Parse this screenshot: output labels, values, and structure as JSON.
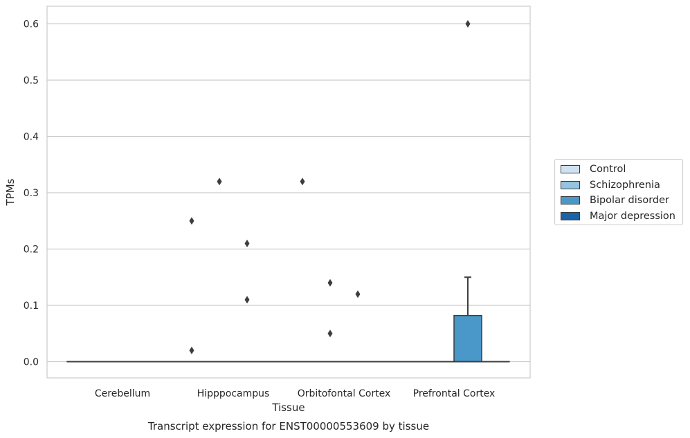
{
  "chart_data": {
    "type": "box",
    "title": "Transcript expression for ENST00000553609 by tissue",
    "xlabel": "Tissue",
    "ylabel": "TPMs",
    "ylim": [
      -0.03,
      0.63
    ],
    "yticks": [
      0.0,
      0.1,
      0.2,
      0.3,
      0.4,
      0.5,
      0.6
    ],
    "ytick_labels": [
      "0.0",
      "0.1",
      "0.2",
      "0.3",
      "0.4",
      "0.5",
      "0.6"
    ],
    "categories": [
      "Cerebellum",
      "Hipppocampus",
      "Orbitofontal Cortex",
      "Prefrontal Cortex"
    ],
    "grid": "horizontal",
    "legend_position": "right",
    "series": [
      {
        "name": "Control",
        "color": "#d0e1f2",
        "boxes": [
          {
            "q1": 0,
            "median": 0,
            "q3": 0,
            "whisker_low": 0,
            "whisker_high": 0,
            "outliers": []
          },
          {
            "q1": 0,
            "median": 0,
            "q3": 0,
            "whisker_low": 0,
            "whisker_high": 0,
            "outliers": [
              0.25,
              0.02
            ]
          },
          {
            "q1": 0,
            "median": 0,
            "q3": 0,
            "whisker_low": 0,
            "whisker_high": 0,
            "outliers": [
              0.32
            ]
          },
          {
            "q1": 0,
            "median": 0,
            "q3": 0,
            "whisker_low": 0,
            "whisker_high": 0,
            "outliers": []
          }
        ]
      },
      {
        "name": "Schizophrenia",
        "color": "#94c4df",
        "boxes": [
          {
            "q1": 0,
            "median": 0,
            "q3": 0,
            "whisker_low": 0,
            "whisker_high": 0,
            "outliers": []
          },
          {
            "q1": 0,
            "median": 0,
            "q3": 0,
            "whisker_low": 0,
            "whisker_high": 0,
            "outliers": [
              0.32
            ]
          },
          {
            "q1": 0,
            "median": 0,
            "q3": 0,
            "whisker_low": 0,
            "whisker_high": 0,
            "outliers": [
              0.14,
              0.05
            ]
          },
          {
            "q1": 0,
            "median": 0,
            "q3": 0,
            "whisker_low": 0,
            "whisker_high": 0,
            "outliers": []
          }
        ]
      },
      {
        "name": "Bipolar disorder",
        "color": "#4a98c9",
        "boxes": [
          {
            "q1": 0,
            "median": 0,
            "q3": 0,
            "whisker_low": 0,
            "whisker_high": 0,
            "outliers": []
          },
          {
            "q1": 0,
            "median": 0,
            "q3": 0,
            "whisker_low": 0,
            "whisker_high": 0,
            "outliers": [
              0.21,
              0.11
            ]
          },
          {
            "q1": 0,
            "median": 0,
            "q3": 0,
            "whisker_low": 0,
            "whisker_high": 0,
            "outliers": [
              0.12
            ]
          },
          {
            "q1": 0,
            "median": 0,
            "q3": 0.082,
            "whisker_low": 0,
            "whisker_high": 0.15,
            "outliers": [
              0.6
            ]
          }
        ]
      },
      {
        "name": "Major depression",
        "color": "#1764ab",
        "boxes": [
          {
            "q1": 0,
            "median": 0,
            "q3": 0,
            "whisker_low": 0,
            "whisker_high": 0,
            "outliers": []
          },
          {
            "q1": 0,
            "median": 0,
            "q3": 0,
            "whisker_low": 0,
            "whisker_high": 0,
            "outliers": []
          },
          {
            "q1": 0,
            "median": 0,
            "q3": 0,
            "whisker_low": 0,
            "whisker_high": 0,
            "outliers": []
          },
          {
            "q1": 0,
            "median": 0,
            "q3": 0,
            "whisker_low": 0,
            "whisker_high": 0,
            "outliers": []
          }
        ]
      }
    ]
  }
}
